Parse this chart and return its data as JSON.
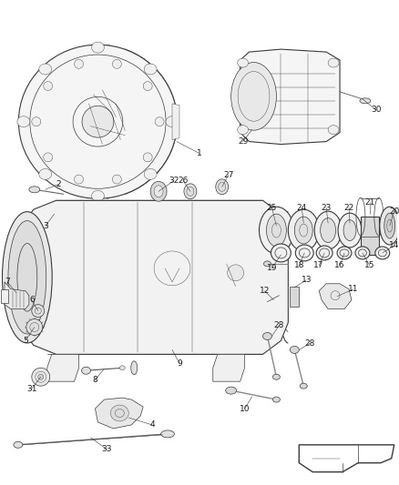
{
  "background_color": "#ffffff",
  "fig_width": 4.38,
  "fig_height": 5.33,
  "dpi": 100,
  "line_color": "#3a3a3a",
  "label_color": "#1a1a1a",
  "label_fontsize": 6.5
}
